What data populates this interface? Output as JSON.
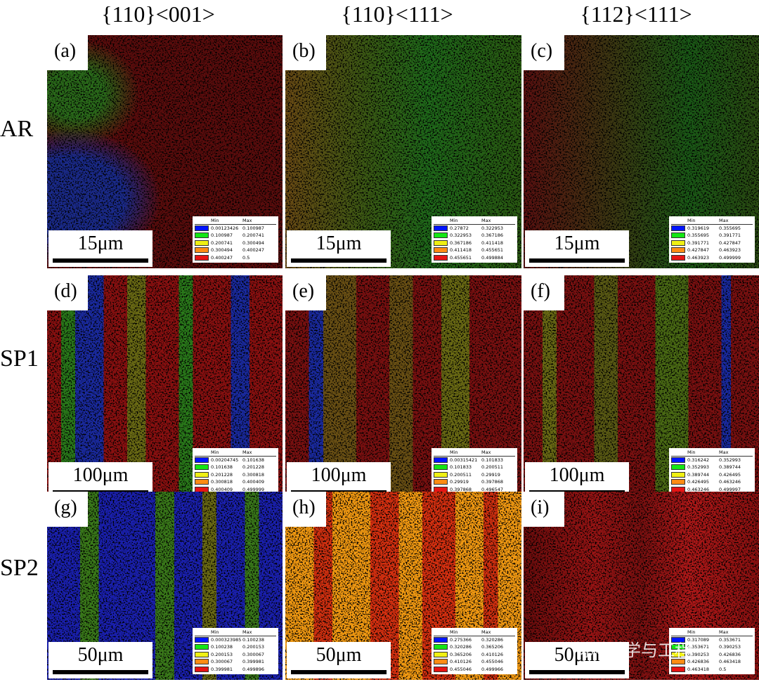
{
  "column_headers": [
    "{110}<001>",
    "{110}<111>",
    "{112}<111>"
  ],
  "row_labels": [
    "AR",
    "SP1",
    "SP2"
  ],
  "panels": [
    {
      "label": "(a)",
      "scale_bar": "15μm",
      "legend": {
        "header": [
          "Min",
          "Max"
        ],
        "rows": [
          [
            "0.00123426",
            "0.100987"
          ],
          [
            "0.100987",
            "0.200741"
          ],
          [
            "0.200741",
            "0.300494"
          ],
          [
            "0.300494",
            "0.400247"
          ],
          [
            "0.400247",
            "0.5"
          ]
        ]
      }
    },
    {
      "label": "(b)",
      "scale_bar": "15μm",
      "legend": {
        "header": [
          "Min",
          "Max"
        ],
        "rows": [
          [
            "0.27872",
            "0.322953"
          ],
          [
            "0.322953",
            "0.367186"
          ],
          [
            "0.367186",
            "0.411418"
          ],
          [
            "0.411418",
            "0.455651"
          ],
          [
            "0.455651",
            "0.499884"
          ]
        ]
      }
    },
    {
      "label": "(c)",
      "scale_bar": "15μm",
      "legend": {
        "header": [
          "Min",
          "Max"
        ],
        "rows": [
          [
            "0.319619",
            "0.355695"
          ],
          [
            "0.355695",
            "0.391771"
          ],
          [
            "0.391771",
            "0.427847"
          ],
          [
            "0.427847",
            "0.463923"
          ],
          [
            "0.463923",
            "0.499999"
          ]
        ]
      }
    },
    {
      "label": "(d)",
      "scale_bar": "100μm",
      "legend": {
        "header": [
          "Min",
          "Max"
        ],
        "rows": [
          [
            "0.00204745",
            "0.101638"
          ],
          [
            "0.101638",
            "0.201228"
          ],
          [
            "0.201228",
            "0.300818"
          ],
          [
            "0.300818",
            "0.400409"
          ],
          [
            "0.400409",
            "0.499999"
          ]
        ]
      }
    },
    {
      "label": "(e)",
      "scale_bar": "100μm",
      "legend": {
        "header": [
          "Min",
          "Max"
        ],
        "rows": [
          [
            "0.00315421",
            "0.101833"
          ],
          [
            "0.101833",
            "0.200511"
          ],
          [
            "0.200511",
            "0.29919"
          ],
          [
            "0.29919",
            "0.397868"
          ],
          [
            "0.397868",
            "0.496547"
          ]
        ]
      }
    },
    {
      "label": "(f)",
      "scale_bar": "100μm",
      "legend": {
        "header": [
          "Min",
          "Max"
        ],
        "rows": [
          [
            "0.316242",
            "0.352993"
          ],
          [
            "0.352993",
            "0.389744"
          ],
          [
            "0.389744",
            "0.426495"
          ],
          [
            "0.426495",
            "0.463246"
          ],
          [
            "0.463246",
            "0.499997"
          ]
        ]
      }
    },
    {
      "label": "(g)",
      "scale_bar": "50μm",
      "legend": {
        "header": [
          "Min",
          "Max"
        ],
        "rows": [
          [
            "0.000323985",
            "0.100238"
          ],
          [
            "0.100238",
            "0.200153"
          ],
          [
            "0.200153",
            "0.300067"
          ],
          [
            "0.300067",
            "0.399981"
          ],
          [
            "0.399981",
            "0.499896"
          ]
        ]
      }
    },
    {
      "label": "(h)",
      "scale_bar": "50μm",
      "legend": {
        "header": [
          "Min",
          "Max"
        ],
        "rows": [
          [
            "0.275366",
            "0.320286"
          ],
          [
            "0.320286",
            "0.365206"
          ],
          [
            "0.365206",
            "0.410126"
          ],
          [
            "0.410126",
            "0.455046"
          ],
          [
            "0.455046",
            "0.499966"
          ]
        ]
      }
    },
    {
      "label": "(i)",
      "scale_bar": "50μm",
      "legend": {
        "header": [
          "Min",
          "Max"
        ],
        "rows": [
          [
            "0.317089",
            "0.353671"
          ],
          [
            "0.353671",
            "0.390253"
          ],
          [
            "0.390253",
            "0.426836"
          ],
          [
            "0.426836",
            "0.463418"
          ],
          [
            "0.463418",
            "0.5"
          ]
        ]
      }
    }
  ],
  "watermark": "材料科学与工程"
}
